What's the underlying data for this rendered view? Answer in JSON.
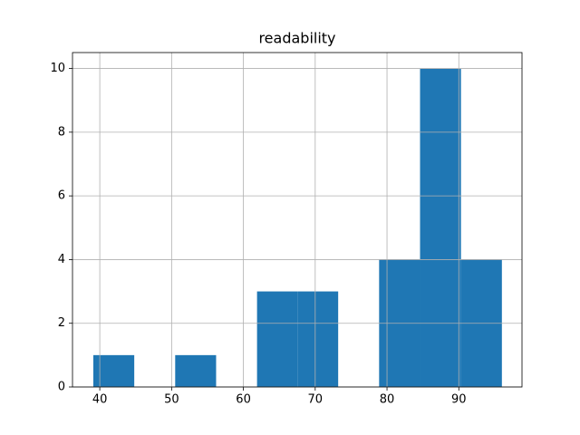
{
  "chart_data": {
    "type": "histogram",
    "title": "readability",
    "bins": [
      39.1,
      44.8,
      50.5,
      56.2,
      61.9,
      67.6,
      73.2,
      78.9,
      84.6,
      90.3,
      96.0
    ],
    "counts": [
      1,
      0,
      1,
      0,
      3,
      3,
      0,
      4,
      10,
      4
    ],
    "color": "#1f77b4",
    "xlim": [
      36.2,
      98.8
    ],
    "xticks": [
      40,
      50,
      60,
      70,
      80,
      90
    ],
    "ylim": [
      0,
      10.5
    ],
    "yticks": [
      0,
      2,
      4,
      6,
      8,
      10
    ],
    "grid": true
  }
}
